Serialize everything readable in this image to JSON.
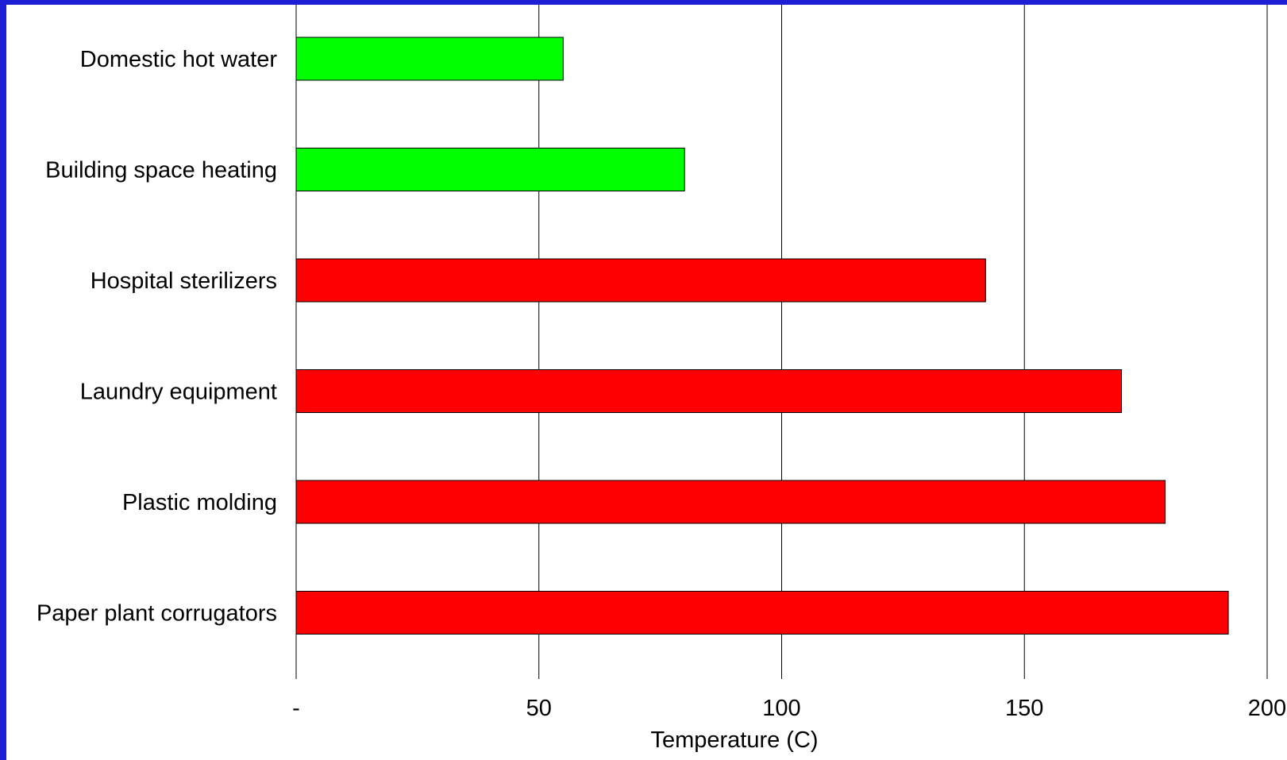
{
  "chart_data": {
    "type": "bar",
    "orientation": "horizontal",
    "title": "",
    "xlabel": "Temperature (C)",
    "ylabel": "",
    "xlim": [
      0,
      200
    ],
    "x_ticks": [
      0,
      50,
      100,
      150,
      200
    ],
    "x_tick_labels": [
      "-",
      "50",
      "100",
      "150",
      "200"
    ],
    "grid": "vertical",
    "legend": "none",
    "categories": [
      "Domestic hot water",
      "Building space heating",
      "Hospital sterilizers",
      "Laundry equipment",
      "Plastic molding",
      "Paper plant corrugators"
    ],
    "values": [
      55,
      80,
      142,
      170,
      179,
      192
    ],
    "colors": [
      "#00ff00",
      "#00ff00",
      "#ff0000",
      "#ff0000",
      "#ff0000",
      "#ff0000"
    ]
  },
  "theme": {
    "frame_color": "#1e1ed6",
    "background": "#ffffff",
    "gridline_color": "#000000"
  }
}
